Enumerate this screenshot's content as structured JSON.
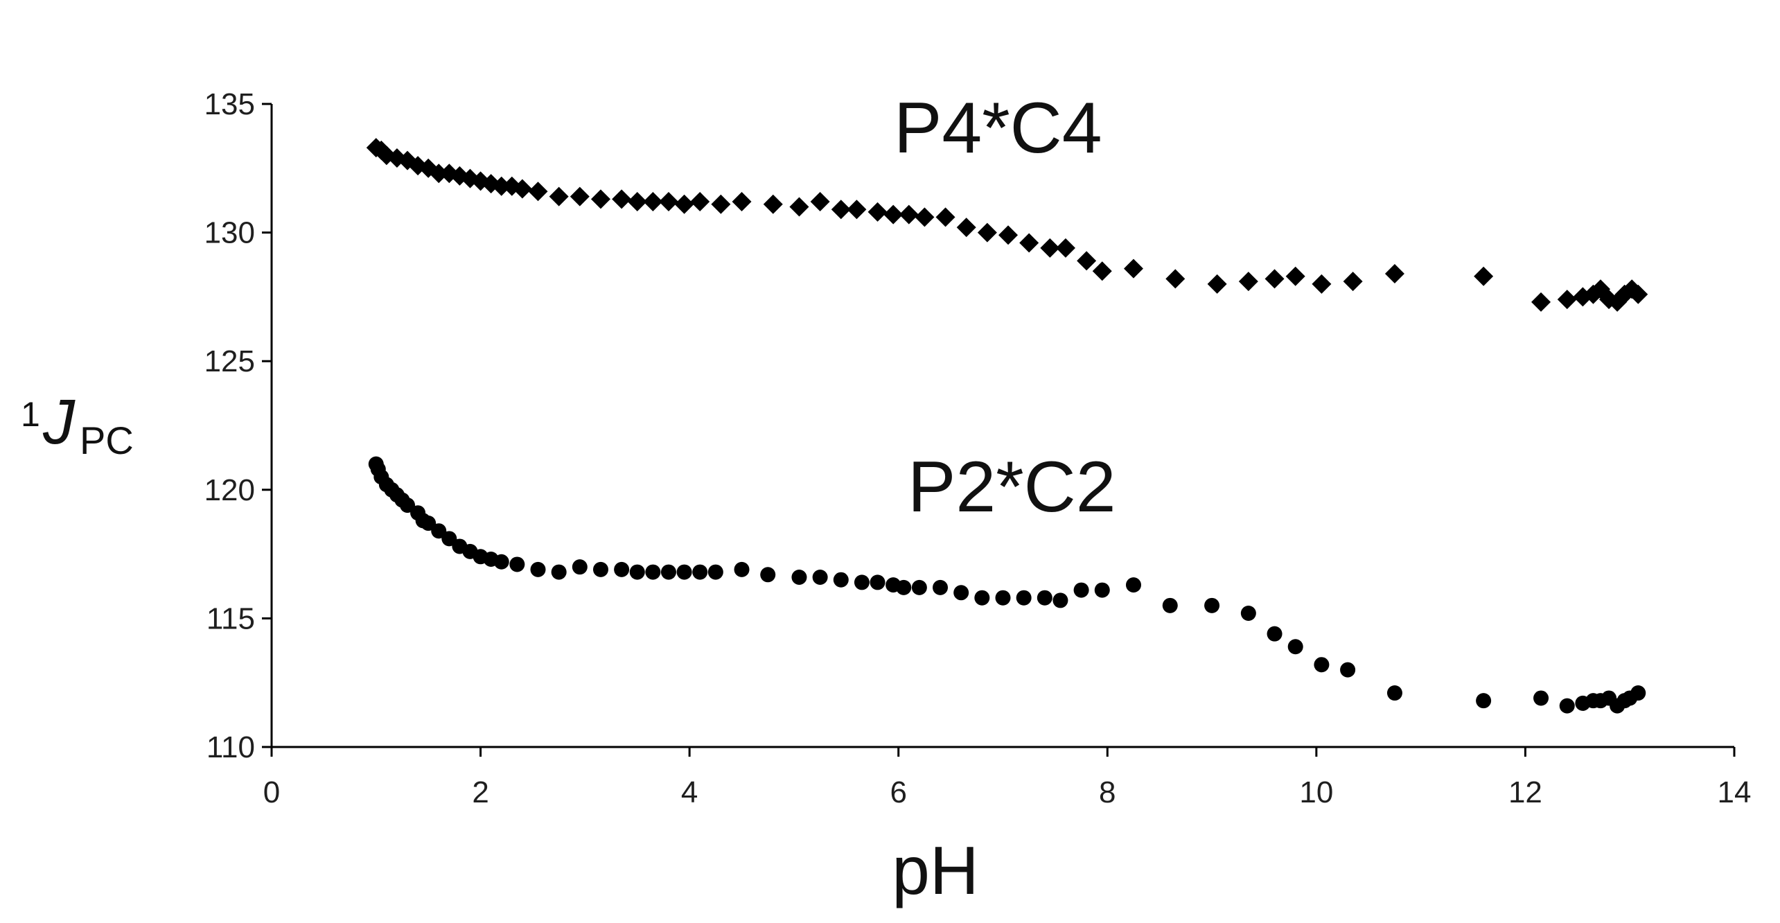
{
  "chart_data": {
    "type": "scatter",
    "title": "",
    "xlabel": "pH",
    "ylabel": {
      "sup": "1",
      "main": "J",
      "sub": "PC"
    },
    "xlim": [
      0,
      14
    ],
    "ylim": [
      110,
      135
    ],
    "x_ticks": [
      0,
      2,
      4,
      6,
      8,
      10,
      12,
      14
    ],
    "y_ticks": [
      110,
      115,
      120,
      125,
      130,
      135
    ],
    "x_tick_labels": [
      "0",
      "2",
      "4",
      "6",
      "8",
      "10",
      "12",
      "14"
    ],
    "y_tick_labels": [
      "110",
      "115",
      "120",
      "125",
      "130",
      "135"
    ],
    "grid": false,
    "series": [
      {
        "name": "P4*C4",
        "marker": "diamond",
        "color": "#000000",
        "x": [
          1.0,
          1.05,
          1.1,
          1.2,
          1.3,
          1.4,
          1.5,
          1.6,
          1.7,
          1.8,
          1.9,
          2.0,
          2.1,
          2.2,
          2.3,
          2.4,
          2.55,
          2.75,
          2.95,
          3.15,
          3.35,
          3.5,
          3.65,
          3.8,
          3.95,
          4.1,
          4.3,
          4.5,
          4.8,
          5.05,
          5.25,
          5.45,
          5.6,
          5.8,
          5.95,
          6.1,
          6.25,
          6.45,
          6.65,
          6.85,
          7.05,
          7.25,
          7.45,
          7.6,
          7.8,
          7.95,
          8.25,
          8.65,
          9.05,
          9.35,
          9.6,
          9.8,
          10.05,
          10.35,
          10.75,
          11.6,
          12.15,
          12.4,
          12.55,
          12.65,
          12.72,
          12.8,
          12.88,
          12.95,
          13.02,
          13.08
        ],
        "y": [
          133.3,
          133.2,
          133.0,
          132.9,
          132.8,
          132.6,
          132.5,
          132.3,
          132.3,
          132.2,
          132.1,
          132.0,
          131.9,
          131.8,
          131.8,
          131.7,
          131.6,
          131.4,
          131.4,
          131.3,
          131.3,
          131.2,
          131.2,
          131.2,
          131.1,
          131.2,
          131.1,
          131.2,
          131.1,
          131.0,
          131.2,
          130.9,
          130.9,
          130.8,
          130.7,
          130.7,
          130.6,
          130.6,
          130.2,
          130.0,
          129.9,
          129.6,
          129.4,
          129.4,
          128.9,
          128.5,
          128.6,
          128.2,
          128.0,
          128.1,
          128.2,
          128.3,
          128.0,
          128.1,
          128.4,
          128.3,
          127.3,
          127.4,
          127.5,
          127.6,
          127.8,
          127.4,
          127.3,
          127.6,
          127.8,
          127.6
        ]
      },
      {
        "name": "P2*C2",
        "marker": "circle",
        "color": "#000000",
        "x": [
          1.0,
          1.02,
          1.05,
          1.1,
          1.15,
          1.2,
          1.25,
          1.3,
          1.4,
          1.45,
          1.5,
          1.6,
          1.7,
          1.8,
          1.9,
          2.0,
          2.1,
          2.2,
          2.35,
          2.55,
          2.75,
          2.95,
          3.15,
          3.35,
          3.5,
          3.65,
          3.8,
          3.95,
          4.1,
          4.25,
          4.5,
          4.75,
          5.05,
          5.25,
          5.45,
          5.65,
          5.8,
          5.95,
          6.05,
          6.2,
          6.4,
          6.6,
          6.8,
          7.0,
          7.2,
          7.4,
          7.55,
          7.75,
          7.95,
          8.25,
          8.6,
          9.0,
          9.35,
          9.6,
          9.8,
          10.05,
          10.3,
          10.75,
          11.6,
          12.15,
          12.4,
          12.55,
          12.65,
          12.72,
          12.8,
          12.88,
          12.95,
          13.0,
          13.08
        ],
        "y": [
          121.0,
          120.8,
          120.5,
          120.2,
          120.0,
          119.8,
          119.6,
          119.4,
          119.1,
          118.8,
          118.7,
          118.4,
          118.1,
          117.8,
          117.6,
          117.4,
          117.3,
          117.2,
          117.1,
          116.9,
          116.8,
          117.0,
          116.9,
          116.9,
          116.8,
          116.8,
          116.8,
          116.8,
          116.8,
          116.8,
          116.9,
          116.7,
          116.6,
          116.6,
          116.5,
          116.4,
          116.4,
          116.3,
          116.2,
          116.2,
          116.2,
          116.0,
          115.8,
          115.8,
          115.8,
          115.8,
          115.7,
          116.1,
          116.1,
          116.3,
          115.5,
          115.5,
          115.2,
          114.4,
          113.9,
          113.2,
          113.0,
          112.1,
          111.8,
          111.9,
          111.6,
          111.7,
          111.8,
          111.8,
          111.9,
          111.6,
          111.8,
          111.9,
          112.1
        ]
      }
    ]
  }
}
